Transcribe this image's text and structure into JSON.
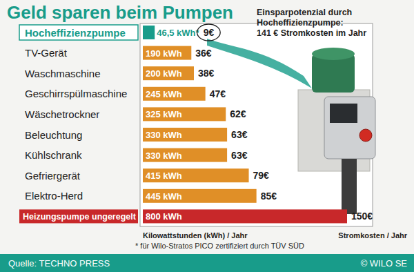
{
  "chart_data": {
    "type": "bar",
    "orientation": "horizontal",
    "title": "Geld sparen beim Pumpen",
    "categories": [
      "Hocheffizienzpumpe",
      "TV-Gerät",
      "Waschmaschine",
      "Geschirrspülmaschine",
      "Wäschetrockner",
      "Beleuchtung",
      "Kühlschrank",
      "Gefriergerät",
      "Elektro-Herd",
      "Heizungspumpe ungeregelt"
    ],
    "values": [
      46.5,
      190,
      200,
      245,
      325,
      330,
      330,
      415,
      445,
      800
    ],
    "value_labels": [
      "46,5 kWh*",
      "190 kWh",
      "200 kWh",
      "245 kWh",
      "325 kWh",
      "330 kWh",
      "330 kWh",
      "415 kWh",
      "445 kWh",
      "800 kWh"
    ],
    "data_labels": true,
    "colors": [
      "#189c8a",
      "#e08f27",
      "#e08f27",
      "#e08f27",
      "#e08f27",
      "#e08f27",
      "#e08f27",
      "#e08f27",
      "#e08f27",
      "#c8282a"
    ],
    "costs": [
      9,
      36,
      38,
      47,
      62,
      63,
      63,
      79,
      85,
      150
    ],
    "cost_labels": [
      "9€",
      "36€",
      "38€",
      "47€",
      "62€",
      "63€",
      "63€",
      "79€",
      "85€",
      "150€"
    ],
    "xlim": [
      0,
      900
    ],
    "xticks": [],
    "tick_labels": "y",
    "grid": false,
    "x_label": "Kilowattstunden (kWh) / Jahr",
    "cost_axis_label": "Stromkosten / Jahr",
    "annotation": [
      "Einsparpotenzial durch",
      "Hocheffizienzpumpe:",
      "141 € Stromkosten im Jahr"
    ],
    "footnote": "* für Wilo-Stratos PICO zertifiziert durch TÜV SÜD",
    "source": "Quelle: TECHNO PRESS",
    "copyright": "© WILO SE"
  }
}
